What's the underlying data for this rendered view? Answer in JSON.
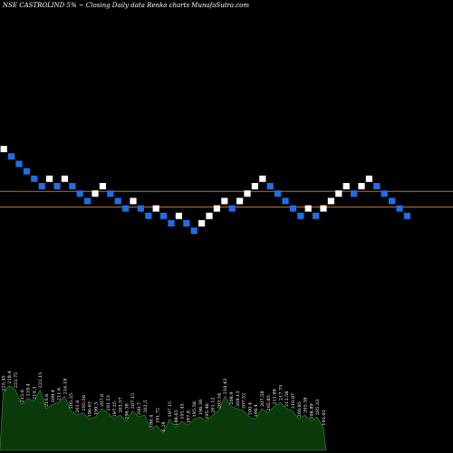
{
  "header": {
    "title": "NSE CASTROLIND 5% ~  Closing Daily data  Renko  charts MunafaSutra.com"
  },
  "colors": {
    "background": "#000000",
    "brick_up": "#ffffff",
    "brick_down": "#1e6fe6",
    "level_line": "#c0702c",
    "volume_fill": "#0a3a0a",
    "volume_stroke": "#2a7a2a"
  },
  "chart_data": {
    "type": "renko",
    "title": "NSE CASTROLIND 5% ~  Closing Daily data  Renko  charts MunafaSutra.com",
    "brick_size_label": "5%",
    "bricks": [
      {
        "dir": "up",
        "level": 13
      },
      {
        "dir": "down",
        "level": 12
      },
      {
        "dir": "down",
        "level": 11
      },
      {
        "dir": "down",
        "level": 10
      },
      {
        "dir": "down",
        "level": 9
      },
      {
        "dir": "down",
        "level": 8
      },
      {
        "dir": "up",
        "level": 9
      },
      {
        "dir": "down",
        "level": 8
      },
      {
        "dir": "up",
        "level": 9
      },
      {
        "dir": "down",
        "level": 8
      },
      {
        "dir": "down",
        "level": 7
      },
      {
        "dir": "down",
        "level": 6
      },
      {
        "dir": "up",
        "level": 7
      },
      {
        "dir": "up",
        "level": 8
      },
      {
        "dir": "down",
        "level": 7
      },
      {
        "dir": "down",
        "level": 6
      },
      {
        "dir": "down",
        "level": 5
      },
      {
        "dir": "up",
        "level": 6
      },
      {
        "dir": "down",
        "level": 5
      },
      {
        "dir": "down",
        "level": 4
      },
      {
        "dir": "up",
        "level": 5
      },
      {
        "dir": "down",
        "level": 4
      },
      {
        "dir": "down",
        "level": 3
      },
      {
        "dir": "up",
        "level": 4
      },
      {
        "dir": "down",
        "level": 3
      },
      {
        "dir": "down",
        "level": 2
      },
      {
        "dir": "up",
        "level": 3
      },
      {
        "dir": "up",
        "level": 4
      },
      {
        "dir": "up",
        "level": 5
      },
      {
        "dir": "up",
        "level": 6
      },
      {
        "dir": "down",
        "level": 5
      },
      {
        "dir": "up",
        "level": 6
      },
      {
        "dir": "up",
        "level": 7
      },
      {
        "dir": "up",
        "level": 8
      },
      {
        "dir": "up",
        "level": 9
      },
      {
        "dir": "down",
        "level": 8
      },
      {
        "dir": "down",
        "level": 7
      },
      {
        "dir": "down",
        "level": 6
      },
      {
        "dir": "down",
        "level": 5
      },
      {
        "dir": "down",
        "level": 4
      },
      {
        "dir": "up",
        "level": 5
      },
      {
        "dir": "down",
        "level": 4
      },
      {
        "dir": "up",
        "level": 5
      },
      {
        "dir": "up",
        "level": 6
      },
      {
        "dir": "up",
        "level": 7
      },
      {
        "dir": "up",
        "level": 8
      },
      {
        "dir": "down",
        "level": 7
      },
      {
        "dir": "up",
        "level": 8
      },
      {
        "dir": "up",
        "level": 9
      },
      {
        "dir": "down",
        "level": 8
      },
      {
        "dir": "down",
        "level": 7
      },
      {
        "dir": "down",
        "level": 6
      },
      {
        "dir": "down",
        "level": 5
      },
      {
        "dir": "down",
        "level": 4
      }
    ],
    "horizontal_lines": [
      {
        "label": "upper level",
        "level": 6.8
      },
      {
        "label": "lower level",
        "level": 4.7
      }
    ],
    "volume_labels": [
      "225.45",
      "218.4",
      "223.75",
      "215.6",
      "219.4",
      "214.3",
      "222.15",
      "210.6",
      "209.4",
      "211.6",
      "216.18",
      "205.25",
      "201.6",
      "205.56",
      "196.63",
      "199.3",
      "207.6",
      "201.53",
      "197.25",
      "203.57",
      "196.38",
      "207.15",
      "200.7",
      "202.5",
      "186.4",
      "191.72",
      "6.28",
      "197.15",
      "188.65",
      "191.45",
      "187.8",
      "195.58",
      "196.36",
      "195.46",
      "201.12",
      "203.54",
      "218.43",
      "208.9",
      "208.13",
      "207.52",
      "200.4",
      "198.4",
      "207.58",
      "205.85",
      "211.98",
      "217.75",
      "213.58",
      "210.97",
      "200.85",
      "205.38",
      "198.89",
      "205.33",
      "193.92"
    ],
    "volume_values": [
      55,
      62,
      58,
      44,
      50,
      47,
      58,
      40,
      44,
      46,
      52,
      38,
      34,
      36,
      30,
      32,
      40,
      36,
      30,
      34,
      28,
      38,
      32,
      34,
      20,
      24,
      16,
      30,
      22,
      28,
      24,
      30,
      32,
      28,
      34,
      38,
      52,
      42,
      40,
      38,
      32,
      30,
      40,
      36,
      42,
      46,
      40,
      38,
      30,
      34,
      28,
      32,
      22
    ],
    "grid": false
  }
}
